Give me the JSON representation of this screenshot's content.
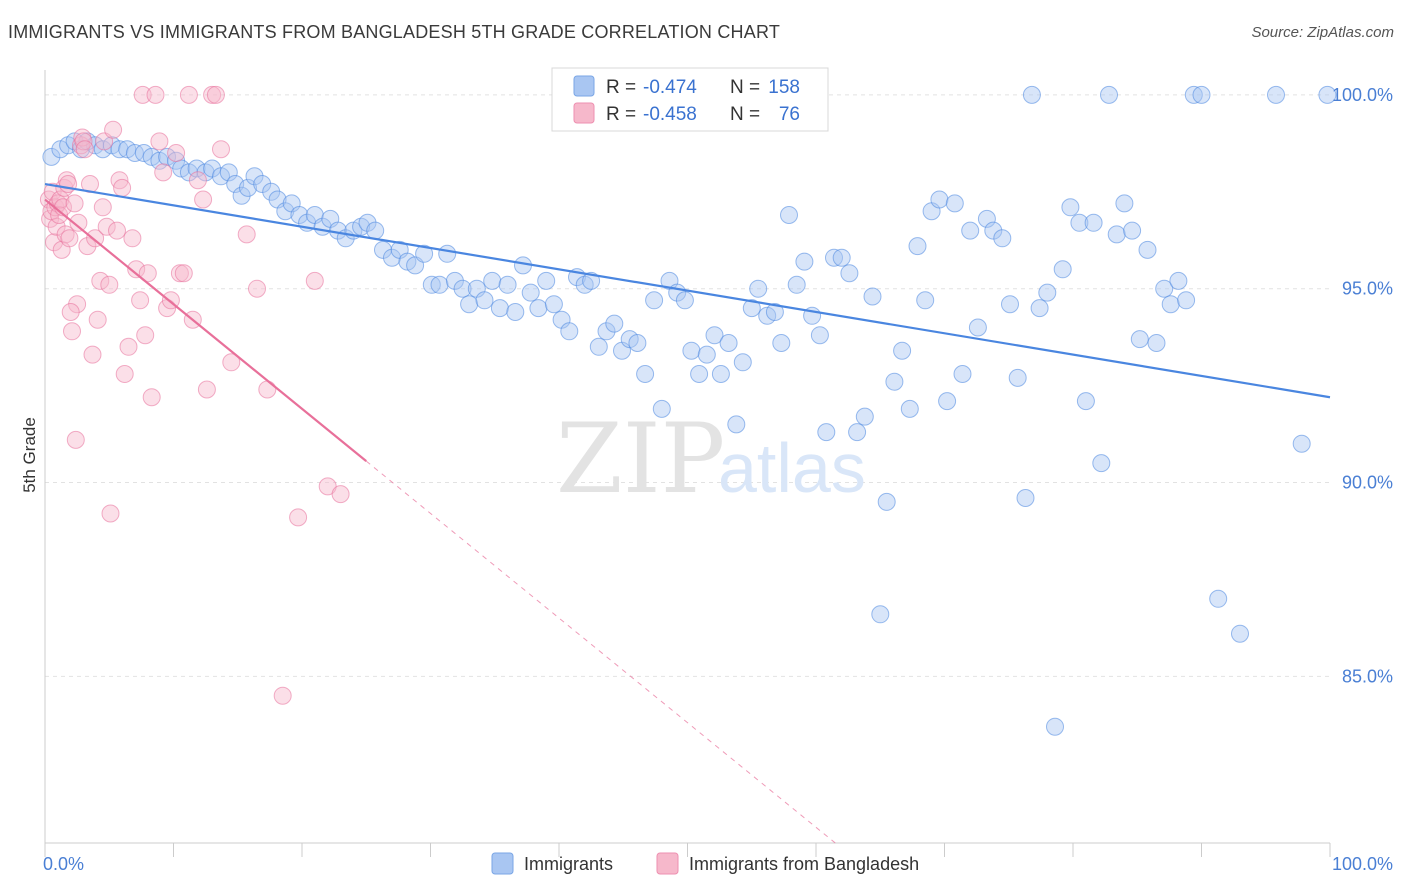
{
  "header": {
    "title": "IMMIGRANTS VS IMMIGRANTS FROM BANGLADESH 5TH GRADE CORRELATION CHART",
    "source": "Source: ZipAtlas.com"
  },
  "watermark": {
    "zip": "ZIP",
    "atlas": "atlas"
  },
  "legend": {
    "r_label": "R =",
    "n_label": "N =",
    "rows": [
      {
        "r": "-0.474",
        "n": "158",
        "color": "#a9c6f2"
      },
      {
        "r": "-0.458",
        "n": "76",
        "color": "#f6b8cb"
      }
    ]
  },
  "chart_data": {
    "type": "scatter",
    "title": "IMMIGRANTS VS IMMIGRANTS FROM BANGLADESH 5TH GRADE CORRELATION CHART",
    "ylabel": "5th Grade",
    "xlim": [
      0,
      100
    ],
    "ylim": [
      80.7,
      100.9
    ],
    "x_tick_labels": [
      "0.0%",
      "100.0%"
    ],
    "y_ticks": [
      {
        "value": 100,
        "label": "100.0%"
      },
      {
        "value": 95,
        "label": "95.0%"
      },
      {
        "value": 90,
        "label": "90.0%"
      },
      {
        "value": 85,
        "label": "85.0%"
      }
    ],
    "grid": true,
    "legend_position": "top-center",
    "series": [
      {
        "name": "Immigrants",
        "color": "#4a86e0",
        "fill": "#a9c6f2",
        "r": -0.474,
        "n": 158,
        "trend": {
          "x0": 0,
          "y0": 97.7,
          "x1": 100,
          "y1": 92.2,
          "solid_until": 100
        },
        "points": [
          [
            0.5,
            98.4
          ],
          [
            1.2,
            98.6
          ],
          [
            1.8,
            98.7
          ],
          [
            2.3,
            98.8
          ],
          [
            2.8,
            98.6
          ],
          [
            3.3,
            98.8
          ],
          [
            3.9,
            98.7
          ],
          [
            4.5,
            98.6
          ],
          [
            5.2,
            98.7
          ],
          [
            5.8,
            98.6
          ],
          [
            6.4,
            98.6
          ],
          [
            7.0,
            98.5
          ],
          [
            7.7,
            98.5
          ],
          [
            8.3,
            98.4
          ],
          [
            8.9,
            98.3
          ],
          [
            9.5,
            98.4
          ],
          [
            10.2,
            98.3
          ],
          [
            10.6,
            98.1
          ],
          [
            11.2,
            98.0
          ],
          [
            11.8,
            98.1
          ],
          [
            12.5,
            98.0
          ],
          [
            13.0,
            98.1
          ],
          [
            13.7,
            97.9
          ],
          [
            14.3,
            98.0
          ],
          [
            14.8,
            97.7
          ],
          [
            15.3,
            97.4
          ],
          [
            15.8,
            97.6
          ],
          [
            16.3,
            97.9
          ],
          [
            16.9,
            97.7
          ],
          [
            17.6,
            97.5
          ],
          [
            18.1,
            97.3
          ],
          [
            18.7,
            97.0
          ],
          [
            19.2,
            97.2
          ],
          [
            19.8,
            96.9
          ],
          [
            20.4,
            96.7
          ],
          [
            21.0,
            96.9
          ],
          [
            21.6,
            96.6
          ],
          [
            22.2,
            96.8
          ],
          [
            22.8,
            96.5
          ],
          [
            23.4,
            96.3
          ],
          [
            24.0,
            96.5
          ],
          [
            24.6,
            96.6
          ],
          [
            25.1,
            96.7
          ],
          [
            25.7,
            96.5
          ],
          [
            26.3,
            96.0
          ],
          [
            27.0,
            95.8
          ],
          [
            27.6,
            96.0
          ],
          [
            28.2,
            95.7
          ],
          [
            28.8,
            95.6
          ],
          [
            29.5,
            95.9
          ],
          [
            30.1,
            95.1
          ],
          [
            30.7,
            95.1
          ],
          [
            31.3,
            95.9
          ],
          [
            31.9,
            95.2
          ],
          [
            32.5,
            95.0
          ],
          [
            33.0,
            94.6
          ],
          [
            33.6,
            95.0
          ],
          [
            34.2,
            94.7
          ],
          [
            34.8,
            95.2
          ],
          [
            35.4,
            94.5
          ],
          [
            36.0,
            95.1
          ],
          [
            36.6,
            94.4
          ],
          [
            37.2,
            95.6
          ],
          [
            37.8,
            94.9
          ],
          [
            38.4,
            94.5
          ],
          [
            39.0,
            95.2
          ],
          [
            39.6,
            94.6
          ],
          [
            40.2,
            94.2
          ],
          [
            40.8,
            93.9
          ],
          [
            41.4,
            95.3
          ],
          [
            42.0,
            95.1
          ],
          [
            42.5,
            95.2
          ],
          [
            43.1,
            93.5
          ],
          [
            43.7,
            93.9
          ],
          [
            44.3,
            94.1
          ],
          [
            44.9,
            93.4
          ],
          [
            45.5,
            93.7
          ],
          [
            46.1,
            93.6
          ],
          [
            46.7,
            92.8
          ],
          [
            47.4,
            94.7
          ],
          [
            48.0,
            91.9
          ],
          [
            48.6,
            95.2
          ],
          [
            49.2,
            94.9
          ],
          [
            49.8,
            94.7
          ],
          [
            50.3,
            93.4
          ],
          [
            50.9,
            92.8
          ],
          [
            51.5,
            93.3
          ],
          [
            52.1,
            93.8
          ],
          [
            52.6,
            92.8
          ],
          [
            53.2,
            93.6
          ],
          [
            53.8,
            91.5
          ],
          [
            54.3,
            93.1
          ],
          [
            55.0,
            94.5
          ],
          [
            55.5,
            95.0
          ],
          [
            56.2,
            94.3
          ],
          [
            56.8,
            94.4
          ],
          [
            57.3,
            93.6
          ],
          [
            57.9,
            96.9
          ],
          [
            58.5,
            95.1
          ],
          [
            59.1,
            95.7
          ],
          [
            59.7,
            94.3
          ],
          [
            60.3,
            93.8
          ],
          [
            60.8,
            91.3
          ],
          [
            61.4,
            95.8
          ],
          [
            62.0,
            95.8
          ],
          [
            62.6,
            95.4
          ],
          [
            63.2,
            91.3
          ],
          [
            63.8,
            91.7
          ],
          [
            64.4,
            94.8
          ],
          [
            65.0,
            86.6
          ],
          [
            65.5,
            89.5
          ],
          [
            66.1,
            92.6
          ],
          [
            66.7,
            93.4
          ],
          [
            67.3,
            91.9
          ],
          [
            67.9,
            96.1
          ],
          [
            68.5,
            94.7
          ],
          [
            69.0,
            97.0
          ],
          [
            69.6,
            97.3
          ],
          [
            70.2,
            92.1
          ],
          [
            70.8,
            97.2
          ],
          [
            71.4,
            92.8
          ],
          [
            72.0,
            96.5
          ],
          [
            72.6,
            94.0
          ],
          [
            73.3,
            96.8
          ],
          [
            73.8,
            96.5
          ],
          [
            74.5,
            96.3
          ],
          [
            75.1,
            94.6
          ],
          [
            75.7,
            92.7
          ],
          [
            76.3,
            89.6
          ],
          [
            76.8,
            100.0
          ],
          [
            77.4,
            94.5
          ],
          [
            78.0,
            94.9
          ],
          [
            78.6,
            83.7
          ],
          [
            79.2,
            95.5
          ],
          [
            79.8,
            97.1
          ],
          [
            80.5,
            96.7
          ],
          [
            81.0,
            92.1
          ],
          [
            81.6,
            96.7
          ],
          [
            82.2,
            90.5
          ],
          [
            82.8,
            100.0
          ],
          [
            83.4,
            96.4
          ],
          [
            84.0,
            97.2
          ],
          [
            84.6,
            96.5
          ],
          [
            85.2,
            93.7
          ],
          [
            85.8,
            96.0
          ],
          [
            86.5,
            93.6
          ],
          [
            87.1,
            95.0
          ],
          [
            87.6,
            94.6
          ],
          [
            88.2,
            95.2
          ],
          [
            88.8,
            94.7
          ],
          [
            89.4,
            100.0
          ],
          [
            90.0,
            100.0
          ],
          [
            91.3,
            87.0
          ],
          [
            93.0,
            86.1
          ],
          [
            95.8,
            100.0
          ],
          [
            97.8,
            91.0
          ],
          [
            99.8,
            100.0
          ]
        ]
      },
      {
        "name": "Immigrants from Bangladesh",
        "color": "#e8709a",
        "fill": "#f6b8cb",
        "r": -0.458,
        "n": 76,
        "trend": {
          "x0": 0,
          "y0": 97.3,
          "x1": 61.5,
          "y1": 80.7,
          "solid_until": 25.0
        },
        "points": [
          [
            0.3,
            97.3
          ],
          [
            0.4,
            96.8
          ],
          [
            0.5,
            97.0
          ],
          [
            0.6,
            97.5
          ],
          [
            0.7,
            96.2
          ],
          [
            0.8,
            97.1
          ],
          [
            0.9,
            96.6
          ],
          [
            1.0,
            97.2
          ],
          [
            1.1,
            96.9
          ],
          [
            1.2,
            97.3
          ],
          [
            1.3,
            96.0
          ],
          [
            1.4,
            97.1
          ],
          [
            1.5,
            97.6
          ],
          [
            1.6,
            96.4
          ],
          [
            1.7,
            97.8
          ],
          [
            1.8,
            97.7
          ],
          [
            1.9,
            96.3
          ],
          [
            2.1,
            93.9
          ],
          [
            2.3,
            97.2
          ],
          [
            2.5,
            94.6
          ],
          [
            2.6,
            96.7
          ],
          [
            2.8,
            98.7
          ],
          [
            2.9,
            98.9
          ],
          [
            3.0,
            98.8
          ],
          [
            3.1,
            98.6
          ],
          [
            3.3,
            96.1
          ],
          [
            3.5,
            97.7
          ],
          [
            3.7,
            93.3
          ],
          [
            3.9,
            96.3
          ],
          [
            4.1,
            94.2
          ],
          [
            4.3,
            95.2
          ],
          [
            4.5,
            97.1
          ],
          [
            4.6,
            98.8
          ],
          [
            4.8,
            96.6
          ],
          [
            5.0,
            95.1
          ],
          [
            5.3,
            99.1
          ],
          [
            5.6,
            96.5
          ],
          [
            5.8,
            97.8
          ],
          [
            6.0,
            97.6
          ],
          [
            6.2,
            92.8
          ],
          [
            6.5,
            93.5
          ],
          [
            6.8,
            96.3
          ],
          [
            7.1,
            95.5
          ],
          [
            7.4,
            94.7
          ],
          [
            7.6,
            100.0
          ],
          [
            7.8,
            93.8
          ],
          [
            8.0,
            95.4
          ],
          [
            8.3,
            92.2
          ],
          [
            8.6,
            100.0
          ],
          [
            8.9,
            98.8
          ],
          [
            9.2,
            98.0
          ],
          [
            9.5,
            94.5
          ],
          [
            9.8,
            94.7
          ],
          [
            10.2,
            98.5
          ],
          [
            10.5,
            95.4
          ],
          [
            10.8,
            95.4
          ],
          [
            11.2,
            100.0
          ],
          [
            11.5,
            94.2
          ],
          [
            11.9,
            97.8
          ],
          [
            12.3,
            97.3
          ],
          [
            12.6,
            92.4
          ],
          [
            13.0,
            100.0
          ],
          [
            13.3,
            100.0
          ],
          [
            13.7,
            98.6
          ],
          [
            14.5,
            93.1
          ],
          [
            15.7,
            96.4
          ],
          [
            16.5,
            95.0
          ],
          [
            17.3,
            92.4
          ],
          [
            18.5,
            84.5
          ],
          [
            19.7,
            89.1
          ],
          [
            21.0,
            95.2
          ],
          [
            22.0,
            89.9
          ],
          [
            23.0,
            89.7
          ],
          [
            2.0,
            94.4
          ],
          [
            5.1,
            89.2
          ],
          [
            2.4,
            91.1
          ]
        ]
      }
    ]
  },
  "bottom_legend": {
    "items": [
      {
        "label": "Immigrants",
        "color": "#a9c6f2"
      },
      {
        "label": "Immigrants from Bangladesh",
        "color": "#f6b8cb"
      }
    ]
  }
}
